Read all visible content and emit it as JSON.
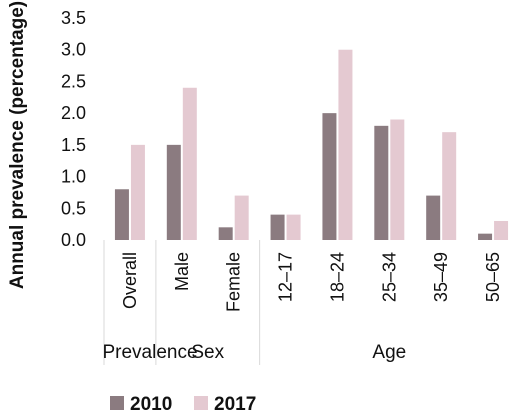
{
  "chart_data": {
    "type": "bar",
    "ylabel": "Annual prevalence (percentage)",
    "xlabel": "",
    "ylim": [
      0,
      3.5
    ],
    "yticks": [
      "0.0",
      "0.5",
      "1.0",
      "1.5",
      "2.0",
      "2.5",
      "3.0",
      "3.5"
    ],
    "grid": false,
    "legend_position": "bottom-left",
    "categories": [
      "Overall",
      "Male",
      "Female",
      "12–17",
      "18–24",
      "25–34",
      "35–49",
      "50–65"
    ],
    "groups": [
      {
        "label": "Prevalence",
        "categories": [
          "Overall"
        ]
      },
      {
        "label": "Sex",
        "categories": [
          "Male",
          "Female"
        ]
      },
      {
        "label": "Age",
        "categories": [
          "12–17",
          "18–24",
          "25–34",
          "35–49",
          "50–65"
        ]
      }
    ],
    "series": [
      {
        "name": "2010",
        "color": "#8b7b80",
        "values": [
          0.8,
          1.5,
          0.2,
          0.4,
          2.0,
          1.8,
          0.7,
          0.1
        ]
      },
      {
        "name": "2017",
        "color": "#e4c9d1",
        "values": [
          1.5,
          2.4,
          0.7,
          0.4,
          3.0,
          1.9,
          1.7,
          0.3
        ]
      }
    ]
  }
}
